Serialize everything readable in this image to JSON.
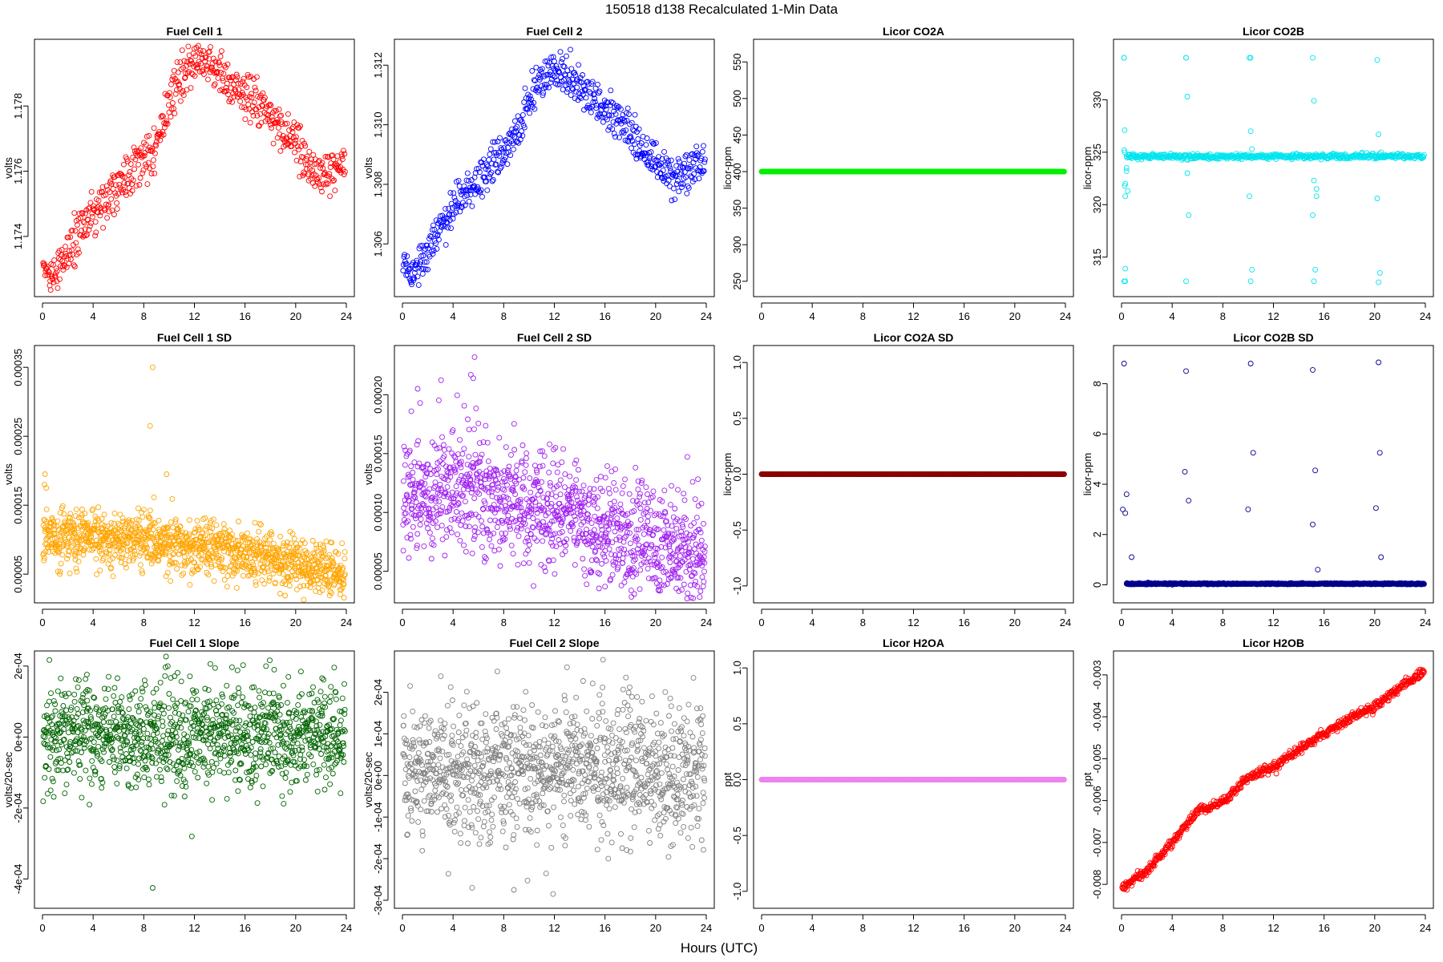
{
  "figure": {
    "title": "150518   d138   Recalculated 1-Min Data",
    "xlabel": "Hours (UTC)"
  },
  "chart_data": [
    {
      "type": "scatter",
      "title": "Fuel Cell 1",
      "ylabel": "volts",
      "color": "#ff0000",
      "xlim": [
        0,
        24
      ],
      "ylim": [
        1.1724,
        1.1798
      ],
      "xticks": [
        0,
        4,
        8,
        12,
        16,
        20,
        24
      ],
      "xtick_labels": [
        "0",
        "4",
        "8",
        "12",
        "16",
        "20",
        "24"
      ],
      "yticks": [
        1.174,
        1.176,
        1.178
      ],
      "ytick_labels": [
        "1.174",
        "1.176",
        "1.178"
      ],
      "trend_x": [
        0,
        0.7,
        2,
        3.5,
        5,
        6.5,
        8,
        9,
        10,
        11,
        12,
        13,
        14,
        15,
        16,
        17,
        18,
        19,
        20,
        21,
        22,
        23,
        23.9
      ],
      "trend_y": [
        1.1731,
        1.1727,
        1.1735,
        1.1745,
        1.1751,
        1.1758,
        1.1764,
        1.1768,
        1.1782,
        1.1789,
        1.1793,
        1.1793,
        1.179,
        1.1785,
        1.1784,
        1.1782,
        1.1777,
        1.1772,
        1.177,
        1.1761,
        1.1759,
        1.176,
        1.1764
      ],
      "noise": 0.00025,
      "split": 0.0005,
      "point_count": 600,
      "pattern": "trend"
    },
    {
      "type": "scatter",
      "title": "Fuel Cell 2",
      "ylabel": "volts",
      "color": "#0000ff",
      "xlim": [
        0,
        24
      ],
      "ylim": [
        1.3045,
        1.3126
      ],
      "xticks": [
        0,
        4,
        8,
        12,
        16,
        20,
        24
      ],
      "xtick_labels": [
        "0",
        "4",
        "8",
        "12",
        "16",
        "20",
        "24"
      ],
      "yticks": [
        1.306,
        1.308,
        1.31,
        1.312
      ],
      "ytick_labels": [
        "1.306",
        "1.308",
        "1.310",
        "1.312"
      ],
      "trend_x": [
        0,
        0.7,
        2,
        3.5,
        5,
        6.5,
        8,
        9,
        10,
        11,
        12,
        13,
        14,
        15,
        16,
        17,
        18,
        19,
        20,
        21,
        22,
        23,
        23.9
      ],
      "trend_y": [
        1.3053,
        1.305,
        1.3058,
        1.3069,
        1.3078,
        1.3084,
        1.3091,
        1.3096,
        1.3108,
        1.3115,
        1.3118,
        1.3117,
        1.3113,
        1.3108,
        1.3105,
        1.3103,
        1.3097,
        1.3092,
        1.3088,
        1.3082,
        1.3083,
        1.3086,
        1.3087
      ],
      "noise": 0.00025,
      "split": 0.0005,
      "point_count": 600,
      "pattern": "trend"
    },
    {
      "type": "scatter",
      "title": "Licor CO2A",
      "ylabel": "licor-ppm",
      "color": "#00ee00",
      "xlim": [
        0,
        24
      ],
      "ylim": [
        240,
        570
      ],
      "xticks": [
        0,
        4,
        8,
        12,
        16,
        20,
        24
      ],
      "xtick_labels": [
        "0",
        "4",
        "8",
        "12",
        "16",
        "20",
        "24"
      ],
      "yticks": [
        250,
        300,
        350,
        400,
        450,
        500,
        550
      ],
      "ytick_labels": [
        "250",
        "300",
        "350",
        "400",
        "450",
        "500",
        "550"
      ],
      "constant": 400,
      "point_count": 600,
      "pattern": "constant"
    },
    {
      "type": "scatter",
      "title": "Licor CO2B",
      "ylabel": "licor-ppm",
      "color": "#00e5ee",
      "xlim": [
        0,
        24
      ],
      "ylim": [
        312,
        335
      ],
      "xticks": [
        0,
        4,
        8,
        12,
        16,
        20,
        24
      ],
      "xtick_labels": [
        "0",
        "4",
        "8",
        "12",
        "16",
        "20",
        "24"
      ],
      "yticks": [
        315,
        320,
        325,
        330
      ],
      "ytick_labels": [
        "315",
        "320",
        "325",
        "330"
      ],
      "baseline": 324.6,
      "noise": 0.12,
      "point_count": 500,
      "pattern": "baseline-outliers",
      "outlier_x": [
        0.2,
        0.2,
        0.2,
        0.3,
        0.3,
        0.25,
        0.25,
        0.4,
        0.4,
        0.5,
        0.3,
        0.25,
        0.3,
        0.2,
        5.1,
        5.1,
        5.2,
        5.2,
        5.3,
        5.1,
        10.1,
        10.2,
        10.3,
        10.2,
        10.3,
        10.1,
        10.2,
        15.1,
        15.2,
        15.3,
        15.4,
        15.2,
        15.1,
        15.2,
        15.4,
        20.2,
        20.3,
        20.4,
        20.3,
        20.2,
        20.5
      ],
      "outlier_y": [
        334,
        334,
        312.7,
        312.7,
        313.9,
        327.1,
        325.0,
        323.2,
        323.5,
        321.3,
        322.0,
        321.8,
        320.8,
        325.2,
        334,
        312.7,
        330.3,
        323.0,
        319.0,
        334,
        334,
        312.7,
        313.8,
        327.0,
        325.3,
        320.8,
        334,
        334,
        312.7,
        313.8,
        320.8,
        329.9,
        319.0,
        322.3,
        321.5,
        333.8,
        312.6,
        313.5,
        326.7,
        320.6,
        325.0
      ]
    },
    {
      "type": "scatter",
      "title": "Fuel Cell 1 SD",
      "ylabel": "volts",
      "color": "#ffa500",
      "xlim": [
        0,
        24
      ],
      "ylim": [
        2e-05,
        0.00037
      ],
      "xticks": [
        0,
        4,
        8,
        12,
        16,
        20,
        24
      ],
      "xtick_labels": [
        "0",
        "4",
        "8",
        "12",
        "16",
        "20",
        "24"
      ],
      "yticks": [
        5e-05,
        0.00015,
        0.00025,
        0.00035
      ],
      "ytick_labels": [
        "0.00005",
        "0.00015",
        "0.00025",
        "0.00035"
      ],
      "trend_x": [
        0,
        4,
        8,
        12,
        16,
        20,
        24
      ],
      "trend_y": [
        0.000105,
        0.000105,
        0.0001,
        9e-05,
        8e-05,
        6.5e-05,
        5e-05
      ],
      "noise": 2e-05,
      "point_count": 1200,
      "pattern": "noise",
      "outlier_x": [
        8.7,
        8.5,
        0.2,
        9.8,
        0.15,
        0.3
      ],
      "outlier_y": [
        0.00035,
        0.000265,
        0.000195,
        0.000195,
        0.00018,
        0.000175
      ]
    },
    {
      "type": "scatter",
      "title": "Fuel Cell 2 SD",
      "ylabel": "volts",
      "color": "#a020f0",
      "xlim": [
        0,
        24
      ],
      "ylim": [
        3e-05,
        0.000235
      ],
      "xticks": [
        0,
        4,
        8,
        12,
        16,
        20,
        24
      ],
      "xtick_labels": [
        "0",
        "4",
        "8",
        "12",
        "16",
        "20",
        "24"
      ],
      "yticks": [
        5e-05,
        0.0001,
        0.00015,
        0.0002
      ],
      "ytick_labels": [
        "0.00005",
        "0.00010",
        "0.00015",
        "0.00020"
      ],
      "trend_x": [
        0,
        4,
        8,
        12,
        16,
        20,
        24
      ],
      "trend_y": [
        0.000105,
        0.000125,
        0.000115,
        0.0001,
        8.5e-05,
        7e-05,
        5.8e-05
      ],
      "noise": 2.4e-05,
      "point_count": 1200,
      "pattern": "noise",
      "outlier_x": [
        5.7,
        5.4,
        5.6,
        1.2,
        1.4,
        0.7,
        16.0
      ],
      "outlier_y": [
        0.000232,
        0.000217,
        0.000214,
        0.000205,
        0.000193,
        0.000186,
        3.7e-05
      ]
    },
    {
      "type": "scatter",
      "title": "Licor CO2A SD",
      "ylabel": "licor-ppm",
      "color": "#8b0000",
      "xlim": [
        0,
        24
      ],
      "ylim": [
        -1.08,
        1.08
      ],
      "xticks": [
        0,
        4,
        8,
        12,
        16,
        20,
        24
      ],
      "xtick_labels": [
        "0",
        "4",
        "8",
        "12",
        "16",
        "20",
        "24"
      ],
      "yticks": [
        -1,
        -0.5,
        0,
        0.5,
        1
      ],
      "ytick_labels": [
        "-1.0",
        "-0.5",
        "0.0",
        "0.5",
        "1.0"
      ],
      "constant": 0,
      "point_count": 600,
      "pattern": "constant"
    },
    {
      "type": "scatter",
      "title": "Licor CO2B SD",
      "ylabel": "licor-ppm",
      "color": "#00008b",
      "xlim": [
        0,
        24
      ],
      "ylim": [
        -0.4,
        9.2
      ],
      "xticks": [
        0,
        4,
        8,
        12,
        16,
        20,
        24
      ],
      "xtick_labels": [
        "0",
        "4",
        "8",
        "12",
        "16",
        "20",
        "24"
      ],
      "yticks": [
        0,
        2,
        4,
        6,
        8
      ],
      "ytick_labels": [
        "0",
        "2",
        "4",
        "6",
        "8"
      ],
      "baseline": 0.04,
      "noise": 0.012,
      "point_count": 900,
      "pattern": "baseline-outliers",
      "outlier_x": [
        0.2,
        0.4,
        0.1,
        0.3,
        0.8,
        5.1,
        5.3,
        5.0,
        10.2,
        10.4,
        10.0,
        15.1,
        15.3,
        15.1,
        15.5,
        20.3,
        20.4,
        20.1,
        20.5
      ],
      "outlier_y": [
        8.8,
        3.6,
        3.0,
        2.85,
        1.1,
        8.5,
        3.35,
        4.5,
        8.8,
        5.25,
        3.0,
        8.55,
        4.55,
        2.4,
        0.6,
        8.85,
        5.25,
        3.05,
        1.1
      ]
    },
    {
      "type": "scatter",
      "title": "Fuel Cell 1 Slope",
      "ylabel": "volts/20-sec",
      "color": "#006400",
      "xlim": [
        0,
        24
      ],
      "ylim": [
        -0.00046,
        0.00022
      ],
      "xticks": [
        0,
        4,
        8,
        12,
        16,
        20,
        24
      ],
      "xtick_labels": [
        "0",
        "4",
        "8",
        "12",
        "16",
        "20",
        "24"
      ],
      "yticks": [
        -0.0004,
        -0.0002,
        0,
        0.0002
      ],
      "ytick_labels": [
        "-4e-04",
        "-2e-04",
        "0e+00",
        "2e-04"
      ],
      "trend_x": [
        0,
        24
      ],
      "trend_y": [
        1e-05,
        1e-05
      ],
      "noise": 7e-05,
      "point_count": 1200,
      "pattern": "noise",
      "outlier_x": [
        8.7,
        11.8,
        9.9,
        18.3
      ],
      "outlier_y": [
        -0.000425,
        -0.00028,
        0.0002,
        0.00019
      ]
    },
    {
      "type": "scatter",
      "title": "Fuel Cell 2 Slope",
      "ylabel": "volts/20-sec",
      "color": "#808080",
      "xlim": [
        0,
        24
      ],
      "ylim": [
        -0.0003,
        0.00028
      ],
      "xticks": [
        0,
        4,
        8,
        12,
        16,
        20,
        24
      ],
      "xtick_labels": [
        "0",
        "4",
        "8",
        "12",
        "16",
        "20",
        "24"
      ],
      "yticks": [
        -0.0003,
        -0.0002,
        -0.0001,
        0,
        0.0001,
        0.0002
      ],
      "ytick_labels": [
        "-3e-04",
        "-2e-04",
        "-1e-04",
        "0e+00",
        "1e-04",
        "2e-04"
      ],
      "trend_x": [
        0,
        24
      ],
      "trend_y": [
        5e-06,
        5e-06
      ],
      "noise": 8e-05,
      "point_count": 1200,
      "pattern": "noise",
      "outlier_x": [
        11.9,
        5.5,
        8.8,
        13.0,
        7.5
      ],
      "outlier_y": [
        -0.000285,
        -0.00027,
        -0.000275,
        0.00026,
        0.00025
      ]
    },
    {
      "type": "scatter",
      "title": "Licor H2OA",
      "ylabel": "ppt",
      "color": "#ee82ee",
      "xlim": [
        0,
        24
      ],
      "ylim": [
        -1.08,
        1.08
      ],
      "xticks": [
        0,
        4,
        8,
        12,
        16,
        20,
        24
      ],
      "xtick_labels": [
        "0",
        "4",
        "8",
        "12",
        "16",
        "20",
        "24"
      ],
      "yticks": [
        -1,
        -0.5,
        0,
        0.5,
        1
      ],
      "ytick_labels": [
        "-1.0",
        "-0.5",
        "0.0",
        "0.5",
        "1.0"
      ],
      "constant": 0,
      "point_count": 600,
      "pattern": "constant"
    },
    {
      "type": "scatter",
      "title": "Licor H2OB",
      "ylabel": "ppt",
      "color": "#ff0000",
      "xlim": [
        0,
        24
      ],
      "ylim": [
        -0.00838,
        -0.00262
      ],
      "xticks": [
        0,
        4,
        8,
        12,
        16,
        20,
        24
      ],
      "xtick_labels": [
        "0",
        "4",
        "8",
        "12",
        "16",
        "20",
        "24"
      ],
      "yticks": [
        -0.008,
        -0.007,
        -0.006,
        -0.005,
        -0.004,
        -0.003
      ],
      "ytick_labels": [
        "-0.008",
        "-0.007",
        "-0.006",
        "-0.005",
        "-0.004",
        "-0.003"
      ],
      "trend_x": [
        0,
        2,
        4,
        6,
        8,
        10,
        12,
        14,
        16,
        18,
        20,
        22,
        24
      ],
      "trend_y": [
        -0.0081,
        -0.00768,
        -0.007,
        -0.00626,
        -0.00602,
        -0.00545,
        -0.0052,
        -0.00478,
        -0.0044,
        -0.00405,
        -0.00375,
        -0.0033,
        -0.0029
      ],
      "noise": 5e-05,
      "point_count": 700,
      "pattern": "trend"
    }
  ]
}
